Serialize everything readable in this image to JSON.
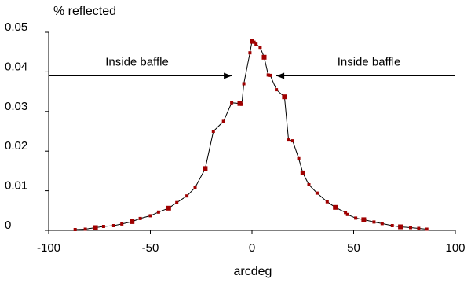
{
  "chart_data": {
    "type": "scatter",
    "title": "",
    "ylabel": "% reflected",
    "xlabel": "arcdeg",
    "xlim": [
      -100,
      100
    ],
    "ylim": [
      0,
      0.05
    ],
    "xticks": [
      -100,
      -50,
      0,
      50,
      100
    ],
    "yticks": [
      0,
      0.01,
      0.02,
      0.03,
      0.04,
      0.05
    ],
    "xtick_labels": [
      "-100",
      "-50",
      "0",
      "50",
      "100"
    ],
    "ytick_labels": [
      "0",
      "0.01",
      "0.02",
      "0.03",
      "0.04",
      "0.05"
    ],
    "grid": false,
    "legend": false,
    "line_color": "#000000",
    "marker_color": "#a00000",
    "annotations": [
      {
        "text": "Inside baffle",
        "arrow_from_x": -100,
        "arrow_to_x": -10,
        "y": 0.039
      },
      {
        "text": "Inside baffle",
        "arrow_from_x": 100,
        "arrow_to_x": 12,
        "y": 0.039
      }
    ],
    "x": [
      -87,
      -82,
      -77,
      -73,
      -68,
      -64,
      -59,
      -55,
      -50,
      -46,
      -41,
      -37,
      -32,
      -28,
      -23,
      -19,
      -14,
      -10,
      -6,
      -5,
      -4,
      -1,
      0,
      1,
      2,
      4,
      6,
      8,
      9,
      12,
      16,
      18,
      20,
      23,
      25,
      28,
      32,
      37,
      41,
      46,
      47,
      51,
      55,
      60,
      64,
      69,
      73,
      78,
      82,
      86
    ],
    "y": [
      0.0002,
      0.0003,
      0.0007,
      0.001,
      0.0012,
      0.0016,
      0.0022,
      0.003,
      0.0037,
      0.0046,
      0.0056,
      0.007,
      0.0087,
      0.0108,
      0.0156,
      0.025,
      0.0275,
      0.0322,
      0.032,
      0.0318,
      0.037,
      0.0448,
      0.0477,
      0.0475,
      0.047,
      0.0462,
      0.0437,
      0.0392,
      0.0391,
      0.0355,
      0.0337,
      0.0228,
      0.0226,
      0.0181,
      0.0145,
      0.0115,
      0.0094,
      0.0072,
      0.0058,
      0.0045,
      0.004,
      0.0031,
      0.0027,
      0.0021,
      0.0017,
      0.0012,
      0.0009,
      0.0007,
      0.0005,
      0.0003
    ]
  }
}
